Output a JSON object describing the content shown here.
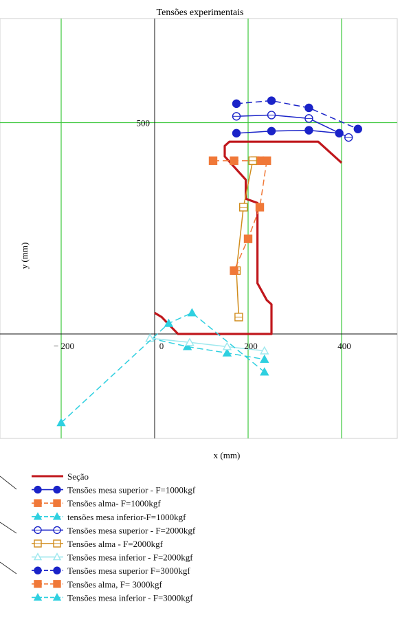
{
  "chart_data": {
    "type": "line",
    "title": "Tensões experimentais",
    "xlabel": "x (mm)",
    "ylabel": "y (mm)",
    "xlim": [
      -215,
      510
    ],
    "ylim": [
      -260,
      730
    ],
    "grid": true,
    "x_ticks": [
      {
        "value": -200,
        "label": "− 200"
      },
      {
        "value": 0,
        "label": "0"
      },
      {
        "value": 200,
        "label": "200"
      },
      {
        "value": 400,
        "label": "400"
      }
    ],
    "y_ticks": [
      {
        "value": 0,
        "label": "0"
      },
      {
        "value": 500,
        "label": "500"
      }
    ],
    "legend_position": "bottom",
    "series": [
      {
        "name": "Seção",
        "color": "#c0171c",
        "marker": "none",
        "dash": "solid",
        "x": [
          0,
          15,
          50,
          250,
          250,
          240,
          220,
          220,
          195,
          195,
          150,
          150,
          160,
          160,
          350,
          400
        ],
        "y": [
          50,
          40,
          0,
          0,
          70,
          80,
          120,
          310,
          320,
          365,
          420,
          445,
          455,
          455,
          455,
          405
        ]
      },
      {
        "name": "Tensões mesa superior - F=1000kgf",
        "color": "#1a23c8",
        "marker": "filled-circle",
        "dash": "solid",
        "x": [
          175,
          250,
          330,
          395
        ],
        "y": [
          475,
          480,
          482,
          475
        ]
      },
      {
        "name": "Tensões alma- F=1000kgf",
        "color": "#f07838",
        "marker": "filled-square",
        "dash": "dashed",
        "x": [
          125,
          170,
          215,
          225
        ],
        "y": [
          410,
          410,
          410,
          410
        ]
      },
      {
        "name": "tensões mesa inferior-F=1000kgf",
        "color": "#2fd0e0",
        "marker": "filled-triangle",
        "dash": "dashed",
        "x": [
          -10,
          70,
          155,
          235
        ],
        "y": [
          -10,
          -30,
          -45,
          -60
        ]
      },
      {
        "name": "Tensões mesa superior - F=2000kgf",
        "color": "#1a23c8",
        "marker": "open-circle",
        "dash": "solid",
        "x": [
          175,
          250,
          330,
          415
        ],
        "y": [
          515,
          518,
          510,
          465
        ]
      },
      {
        "name": "Tensões alma - F=2000kgf",
        "color": "#d08c1c",
        "marker": "open-square",
        "dash": "solid",
        "x": [
          210,
          190,
          175,
          180
        ],
        "y": [
          410,
          300,
          150,
          40
        ]
      },
      {
        "name": "Tensões mesa inferior - F=2000kgf",
        "color": "#9ee8ee",
        "marker": "open-triangle",
        "dash": "solid",
        "x": [
          -10,
          75,
          155,
          235
        ],
        "y": [
          -10,
          -20,
          -30,
          -40
        ]
      },
      {
        "name": "Tensões mesa superior F=3000kgf",
        "color": "#1a23c8",
        "marker": "filled-circle",
        "dash": "dashed",
        "x": [
          175,
          250,
          330,
          435
        ],
        "y": [
          545,
          552,
          535,
          485
        ]
      },
      {
        "name": "Tensões alma, F= 3000kgf",
        "color": "#f07838",
        "marker": "filled-square",
        "dash": "dashed",
        "x": [
          240,
          225,
          200,
          170
        ],
        "y": [
          410,
          300,
          225,
          150
        ]
      },
      {
        "name": "Tensões mesa inferior - F=3000kgf",
        "color": "#2fd0e0",
        "marker": "filled-triangle",
        "dash": "dashed",
        "x": [
          -200,
          30,
          80,
          235
        ],
        "y": [
          -210,
          25,
          50,
          -90
        ]
      }
    ]
  }
}
